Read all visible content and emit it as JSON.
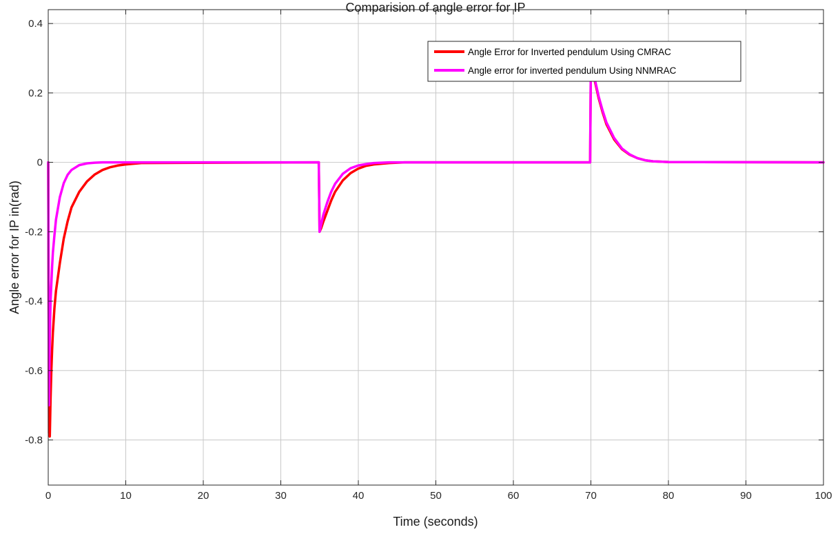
{
  "chart_data": {
    "type": "line",
    "title": "Comparision of angle  error for IP",
    "xlabel": "Time (seconds)",
    "ylabel": "Angle error for IP in(rad)",
    "xlim": [
      0,
      100
    ],
    "ylim": [
      -0.93,
      0.44
    ],
    "xticks": [
      0,
      10,
      20,
      30,
      40,
      50,
      60,
      70,
      80,
      90,
      100
    ],
    "yticks": [
      0.4,
      0.2,
      0,
      -0.2,
      -0.4,
      -0.6,
      -0.8
    ],
    "xtick_labels": [
      "0",
      "10",
      "20",
      "30",
      "40",
      "50",
      "60",
      "70",
      "80",
      "90",
      "100"
    ],
    "ytick_labels": [
      "0.4",
      "0.2",
      "0",
      "-0.2",
      "-0.4",
      "-0.6",
      "-0.8"
    ],
    "grid": true,
    "legend_position": "top-right",
    "series": [
      {
        "name": "Angle Error for Inverted pendulum Using CMRAC",
        "color": "#ff0000",
        "x": [
          0,
          0.1,
          0.2,
          0.3,
          0.4,
          0.5,
          0.6,
          0.8,
          1,
          1.5,
          2,
          2.5,
          3,
          4,
          5,
          6,
          7,
          8,
          9,
          10,
          11,
          12,
          34.9,
          35,
          35.2,
          35.5,
          36,
          36.5,
          37,
          38,
          39,
          40,
          41,
          42,
          44,
          46,
          69.9,
          70,
          70.1,
          70.3,
          70.5,
          71,
          71.5,
          72,
          73,
          74,
          75,
          76,
          77,
          78,
          80,
          100
        ],
        "y": [
          0,
          -0.78,
          -0.79,
          -0.68,
          -0.6,
          -0.54,
          -0.49,
          -0.42,
          -0.37,
          -0.29,
          -0.22,
          -0.17,
          -0.13,
          -0.085,
          -0.055,
          -0.035,
          -0.022,
          -0.014,
          -0.009,
          -0.006,
          -0.004,
          -0.002,
          0,
          -0.2,
          -0.19,
          -0.17,
          -0.14,
          -0.11,
          -0.085,
          -0.052,
          -0.031,
          -0.018,
          -0.01,
          -0.006,
          -0.002,
          0,
          0,
          0.29,
          0.29,
          0.26,
          0.235,
          0.185,
          0.145,
          0.11,
          0.066,
          0.038,
          0.022,
          0.012,
          0.006,
          0.003,
          0.001,
          0
        ]
      },
      {
        "name": "Angle error for inverted pendulum Using NNMRAC",
        "color": "#ff00ff",
        "x": [
          0,
          0.1,
          0.2,
          0.3,
          0.4,
          0.5,
          0.6,
          0.8,
          1,
          1.5,
          2,
          2.5,
          3,
          4,
          5,
          6,
          7,
          8,
          9,
          10,
          34.9,
          35,
          35.2,
          35.5,
          36,
          36.5,
          37,
          38,
          39,
          40,
          41,
          42,
          44,
          69.9,
          70,
          70.1,
          70.3,
          70.5,
          71,
          71.5,
          72,
          73,
          74,
          75,
          76,
          77,
          78,
          80,
          100
        ],
        "y": [
          0,
          -0.7,
          -0.5,
          -0.4,
          -0.35,
          -0.3,
          -0.26,
          -0.21,
          -0.165,
          -0.1,
          -0.06,
          -0.036,
          -0.022,
          -0.008,
          -0.003,
          -0.001,
          0,
          0,
          0,
          0,
          0,
          -0.2,
          -0.18,
          -0.15,
          -0.115,
          -0.085,
          -0.062,
          -0.033,
          -0.017,
          -0.009,
          -0.005,
          -0.002,
          0,
          0,
          0.3,
          0.29,
          0.265,
          0.24,
          0.19,
          0.15,
          0.115,
          0.07,
          0.04,
          0.023,
          0.012,
          0.006,
          0.003,
          0.001,
          0
        ]
      }
    ]
  }
}
